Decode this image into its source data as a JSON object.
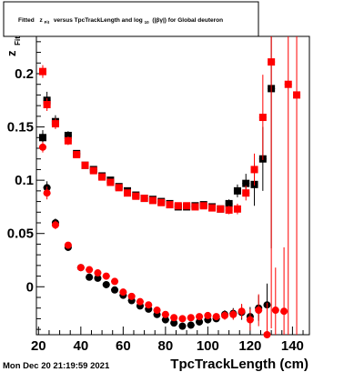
{
  "title": {
    "prefix": "Fitted",
    "var": "z",
    "var_sub": "Fit",
    "middle": "versus TpcTrackLength and log",
    "log_sub": "10",
    "suffix": "(|βγ|) for Global deuteron"
  },
  "timestamp": "Mon Dec 20 21:19:59 2021",
  "chart_data": {
    "type": "scatter",
    "xlabel": "TpcTrackLength (cm)",
    "ylabel": "z",
    "ylabel_sub": "Fit",
    "xlim": [
      19,
      148
    ],
    "ylim": [
      -0.045,
      0.235
    ],
    "x_ticks": [
      "20",
      "40",
      "60",
      "80",
      "100",
      "120",
      "140"
    ],
    "y_ticks": [
      "0",
      "0.05",
      "0.1",
      "0.15",
      "0.2"
    ],
    "series": [
      {
        "color": "#000000",
        "marker": "square",
        "points": [
          [
            22,
            0.14,
            0.007
          ],
          [
            24,
            0.175,
            0.008
          ],
          [
            28,
            0.155,
            0.006
          ],
          [
            34,
            0.142,
            0.004
          ],
          [
            38,
            0.125,
            0.003
          ],
          [
            42,
            0.114,
            0.002
          ],
          [
            46,
            0.11,
            0.002
          ],
          [
            50,
            0.104,
            0.002
          ],
          [
            54,
            0.1,
            0.002
          ],
          [
            58,
            0.094,
            0.002
          ],
          [
            62,
            0.09,
            0.002
          ],
          [
            66,
            0.086,
            0.002
          ],
          [
            70,
            0.083,
            0.002
          ],
          [
            74,
            0.082,
            0.002
          ],
          [
            78,
            0.08,
            0.002
          ],
          [
            82,
            0.078,
            0.002
          ],
          [
            86,
            0.075,
            0.002
          ],
          [
            90,
            0.075,
            0.002
          ],
          [
            94,
            0.076,
            0.002
          ],
          [
            98,
            0.077,
            0.003
          ],
          [
            102,
            0.075,
            0.003
          ],
          [
            106,
            0.073,
            0.003
          ],
          [
            110,
            0.078,
            0.004
          ],
          [
            114,
            0.09,
            0.006
          ],
          [
            118,
            0.097,
            0.009
          ],
          [
            122,
            0.096,
            0.02
          ],
          [
            126,
            0.12,
            0.03
          ],
          [
            130,
            0.186,
            0.15
          ]
        ]
      },
      {
        "color": "#ff0000",
        "marker": "square",
        "points": [
          [
            22,
            0.202,
            0.006
          ],
          [
            24,
            0.171,
            0.006
          ],
          [
            28,
            0.153,
            0.005
          ],
          [
            34,
            0.137,
            0.004
          ],
          [
            38,
            0.124,
            0.003
          ],
          [
            42,
            0.114,
            0.002
          ],
          [
            46,
            0.109,
            0.002
          ],
          [
            50,
            0.103,
            0.002
          ],
          [
            54,
            0.098,
            0.002
          ],
          [
            58,
            0.093,
            0.002
          ],
          [
            62,
            0.088,
            0.002
          ],
          [
            66,
            0.085,
            0.002
          ],
          [
            70,
            0.083,
            0.002
          ],
          [
            74,
            0.081,
            0.002
          ],
          [
            78,
            0.079,
            0.002
          ],
          [
            82,
            0.077,
            0.002
          ],
          [
            86,
            0.076,
            0.002
          ],
          [
            90,
            0.076,
            0.002
          ],
          [
            94,
            0.075,
            0.002
          ],
          [
            98,
            0.076,
            0.003
          ],
          [
            102,
            0.074,
            0.003
          ],
          [
            106,
            0.073,
            0.003
          ],
          [
            110,
            0.072,
            0.004
          ],
          [
            114,
            0.073,
            0.005
          ],
          [
            118,
            0.088,
            0.007
          ],
          [
            122,
            0.11,
            0.015
          ],
          [
            126,
            0.159,
            0.04
          ],
          [
            130,
            0.211,
            0.25
          ],
          [
            138,
            0.19,
            0.3
          ],
          [
            142,
            0.18,
            0.3
          ]
        ]
      },
      {
        "color": "#000000",
        "marker": "circle",
        "points": [
          [
            22,
            0.14,
            0.005
          ],
          [
            24,
            0.093,
            0.006
          ],
          [
            28,
            0.06,
            0.004
          ],
          [
            34,
            0.037,
            0.003
          ],
          [
            40,
            0.018,
            0.003
          ],
          [
            44,
            0.009,
            0.002
          ],
          [
            48,
            0.008,
            0.002
          ],
          [
            52,
            0.002,
            0.002
          ],
          [
            56,
            -0.003,
            0.002
          ],
          [
            60,
            -0.008,
            0.002
          ],
          [
            64,
            -0.013,
            0.002
          ],
          [
            68,
            -0.018,
            0.002
          ],
          [
            72,
            -0.021,
            0.002
          ],
          [
            76,
            -0.026,
            0.002
          ],
          [
            80,
            -0.031,
            0.002
          ],
          [
            84,
            -0.034,
            0.002
          ],
          [
            88,
            -0.037,
            0.002
          ],
          [
            92,
            -0.036,
            0.002
          ],
          [
            96,
            -0.033,
            0.002
          ],
          [
            100,
            -0.031,
            0.003
          ],
          [
            104,
            -0.03,
            0.003
          ],
          [
            108,
            -0.026,
            0.004
          ],
          [
            112,
            -0.025,
            0.005
          ],
          [
            116,
            -0.024,
            0.007
          ],
          [
            120,
            -0.028,
            0.009
          ],
          [
            124,
            -0.02,
            0.012
          ],
          [
            128,
            -0.017,
            0.02
          ]
        ]
      },
      {
        "color": "#ff0000",
        "marker": "circle",
        "points": [
          [
            22,
            0.131,
            0.005
          ],
          [
            24,
            0.088,
            0.006
          ],
          [
            28,
            0.058,
            0.004
          ],
          [
            34,
            0.039,
            0.003
          ],
          [
            40,
            0.018,
            0.003
          ],
          [
            44,
            0.016,
            0.002
          ],
          [
            48,
            0.013,
            0.002
          ],
          [
            52,
            0.01,
            0.002
          ],
          [
            56,
            0.005,
            0.002
          ],
          [
            60,
            -0.005,
            0.002
          ],
          [
            64,
            -0.009,
            0.002
          ],
          [
            68,
            -0.014,
            0.002
          ],
          [
            72,
            -0.017,
            0.002
          ],
          [
            76,
            -0.022,
            0.002
          ],
          [
            80,
            -0.026,
            0.002
          ],
          [
            84,
            -0.029,
            0.002
          ],
          [
            88,
            -0.03,
            0.002
          ],
          [
            92,
            -0.029,
            0.002
          ],
          [
            96,
            -0.028,
            0.002
          ],
          [
            100,
            -0.027,
            0.003
          ],
          [
            104,
            -0.028,
            0.003
          ],
          [
            108,
            -0.027,
            0.004
          ],
          [
            112,
            -0.026,
            0.005
          ],
          [
            116,
            -0.023,
            0.007
          ],
          [
            120,
            -0.031,
            0.01
          ],
          [
            124,
            -0.022,
            0.015
          ],
          [
            128,
            -0.045,
            0.03
          ],
          [
            132,
            -0.022,
            0.04
          ],
          [
            136,
            -0.023,
            0.06
          ]
        ]
      }
    ]
  }
}
